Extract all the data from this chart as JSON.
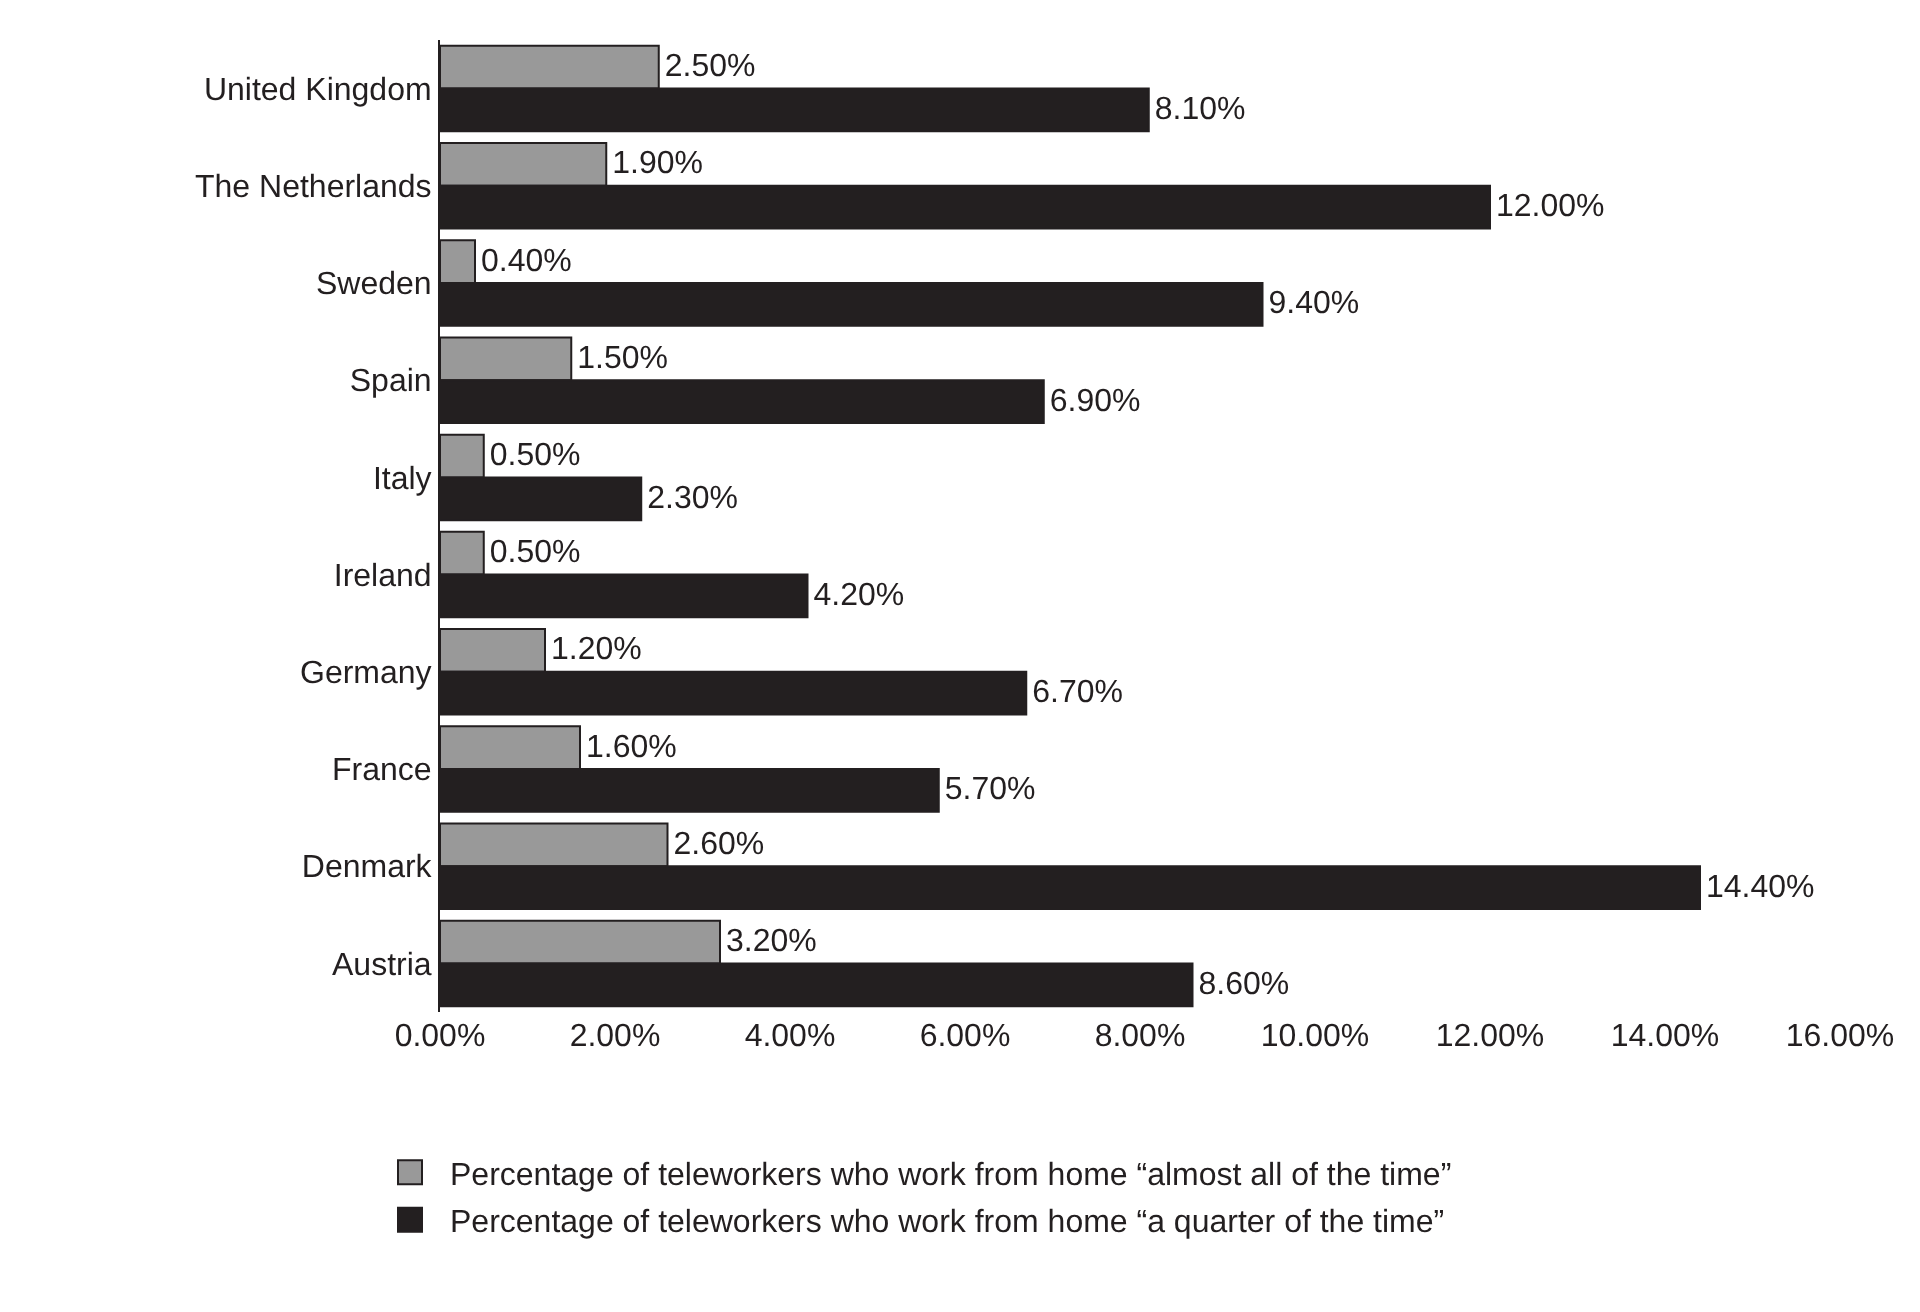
{
  "chart_data": {
    "type": "bar",
    "orientation": "horizontal",
    "categories": [
      "United Kingdom",
      "The Netherlands",
      "Sweden",
      "Spain",
      "Italy",
      "Ireland",
      "Germany",
      "France",
      "Denmark",
      "Austria"
    ],
    "series": [
      {
        "name": "Percentage of teleworkers who work from home “almost all of the time”",
        "color": "#999999",
        "values": [
          2.5,
          1.9,
          0.4,
          1.5,
          0.5,
          0.5,
          1.2,
          1.6,
          2.6,
          3.2
        ],
        "value_labels": [
          "2.50%",
          "1.90%",
          "0.40%",
          "1.50%",
          "0.50%",
          "0.50%",
          "1.20%",
          "1.60%",
          "2.60%",
          "3.20%"
        ]
      },
      {
        "name": "Percentage of teleworkers who work from home “a quarter of the time”",
        "color": "#231f20",
        "values": [
          8.1,
          12.0,
          9.4,
          6.9,
          2.3,
          4.2,
          6.7,
          5.7,
          14.4,
          8.6
        ],
        "value_labels": [
          "8.10%",
          "12.00%",
          "9.40%",
          "6.90%",
          "2.30%",
          "4.20%",
          "6.70%",
          "5.70%",
          "14.40%",
          "8.60%"
        ]
      }
    ],
    "xlim": [
      0,
      16
    ],
    "xticks": [
      {
        "value": 0,
        "label": "0.00%"
      },
      {
        "value": 2,
        "label": "2.00%"
      },
      {
        "value": 4,
        "label": "4.00%"
      },
      {
        "value": 6,
        "label": "6.00%"
      },
      {
        "value": 8,
        "label": "8.00%"
      },
      {
        "value": 10,
        "label": "10.00%"
      },
      {
        "value": 12,
        "label": "12.00%"
      },
      {
        "value": 14,
        "label": "14.00%"
      },
      {
        "value": 16,
        "label": "16.00%"
      }
    ],
    "legend": "bottom"
  }
}
